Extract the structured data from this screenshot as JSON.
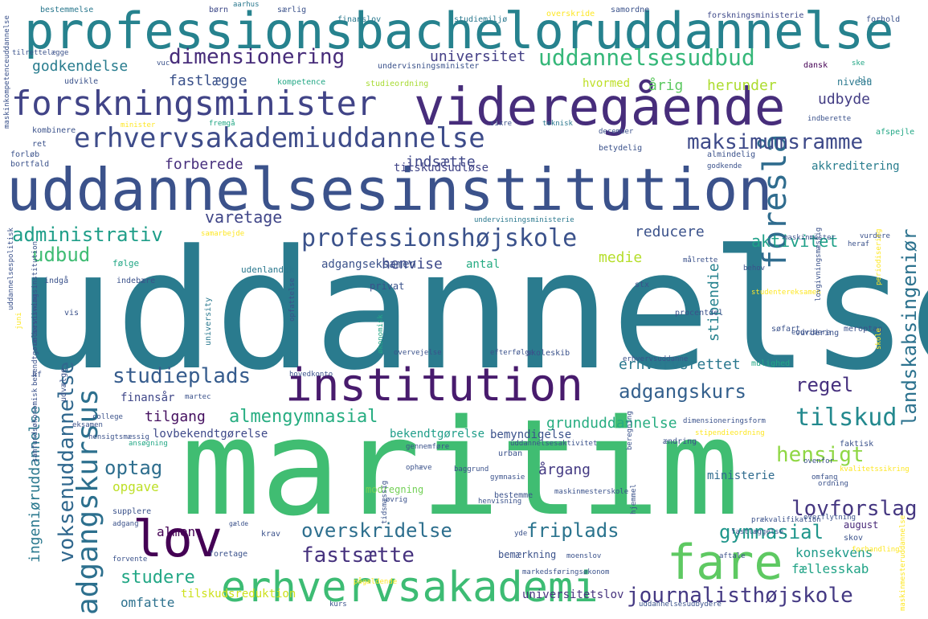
{
  "words": [
    {
      "text": "uddannelse",
      "color": "#2a7b8e"
    },
    {
      "text": "maritim",
      "color": "#40bd72"
    },
    {
      "text": "uddannelsesinstitution",
      "color": "#3b528b"
    },
    {
      "text": "professionsbacheloruddannelse",
      "color": "#26828e"
    },
    {
      "text": "videregående",
      "color": "#472d7b"
    },
    {
      "text": "institution",
      "color": "#481b6d"
    },
    {
      "text": "lov",
      "color": "#440154"
    },
    {
      "text": "fare",
      "color": "#5ec962"
    },
    {
      "text": "erhvervsakademi",
      "color": "#3dbc74"
    },
    {
      "text": "forskningsminister",
      "color": "#414487"
    },
    {
      "text": "erhvervsakademiuddannelse",
      "color": "#3e4c8a"
    },
    {
      "text": "adgangskursus",
      "color": "#2d708e"
    },
    {
      "text": "professionshøjskole",
      "color": "#3b528b"
    },
    {
      "text": "foreslå",
      "color": "#2f6c8e"
    },
    {
      "text": "uddannelsesudbud",
      "color": "#35b779"
    },
    {
      "text": "dimensionering",
      "color": "#472c7a"
    },
    {
      "text": "maksimumsramme",
      "color": "#3e4a89"
    },
    {
      "text": "studieplads",
      "color": "#365c8d"
    },
    {
      "text": "adgangskurs",
      "color": "#34608d"
    },
    {
      "text": "voksenuddannelse",
      "color": "#31688e"
    },
    {
      "text": "landskabsingeniør",
      "color": "#2c728e"
    },
    {
      "text": "tilskud",
      "color": "#23898e"
    },
    {
      "text": "journalisthøjskole",
      "color": "#443983"
    },
    {
      "text": "fastsætte",
      "color": "#46327e"
    },
    {
      "text": "overskridelse",
      "color": "#2e6f8e"
    },
    {
      "text": "lovforslag",
      "color": "#453781"
    },
    {
      "text": "gymnasial",
      "color": "#1f968b"
    },
    {
      "text": "hensigt",
      "color": "#8fd744"
    },
    {
      "text": "friplads",
      "color": "#2b748e"
    },
    {
      "text": "administrativ",
      "color": "#1f9e89"
    },
    {
      "text": "almengymnasial",
      "color": "#26ad81"
    },
    {
      "text": "regel",
      "color": "#46307e"
    },
    {
      "text": "udbud",
      "color": "#3fbc73"
    },
    {
      "text": "optag",
      "color": "#2e6e8e"
    },
    {
      "text": "studere",
      "color": "#22a785"
    },
    {
      "text": "forberede",
      "color": "#472f7d"
    },
    {
      "text": "godkendelse",
      "color": "#287c8e"
    },
    {
      "text": "aktivitet",
      "color": "#1fa088"
    },
    {
      "text": "erhvervsrettet",
      "color": "#2a788e"
    },
    {
      "text": "konsekvens",
      "color": "#1e9b8a"
    },
    {
      "text": "fællesskab",
      "color": "#20a386"
    },
    {
      "text": "grunduddannelse",
      "color": "#27ad81"
    },
    {
      "text": "tilgang",
      "color": "#440f5f"
    },
    {
      "text": "årgang",
      "color": "#443a83"
    },
    {
      "text": "ingeniøruddannelse",
      "color": "#2a788e"
    },
    {
      "text": "universitet",
      "color": "#433e85"
    },
    {
      "text": "fastlægge",
      "color": "#3b528b"
    },
    {
      "text": "herunder",
      "color": "#addc30"
    },
    {
      "text": "udbyde",
      "color": "#433d84"
    },
    {
      "text": "årig",
      "color": "#5ec962"
    },
    {
      "text": "varetage",
      "color": "#404688"
    },
    {
      "text": "reducere",
      "color": "#3b528b"
    },
    {
      "text": "stipendie",
      "color": "#26828e"
    },
    {
      "text": "medie",
      "color": "#b5de2b"
    },
    {
      "text": "henvise",
      "color": "#3e4989"
    },
    {
      "text": "indsætte",
      "color": "#3f4788"
    },
    {
      "text": "almen",
      "color": "#440154"
    },
    {
      "text": "opgave",
      "color": "#bddf26"
    },
    {
      "text": "omfatte",
      "color": "#2d718e"
    },
    {
      "text": "ministerie",
      "color": "#2f6b8e"
    },
    {
      "text": "universitetslov",
      "color": "#46327e"
    },
    {
      "text": "tilskudsreduktion",
      "color": "#cde11d"
    },
    {
      "text": "bekendtgørelse",
      "color": "#1f9e89"
    },
    {
      "text": "lovbekendtgørelse",
      "color": "#3e4989"
    },
    {
      "text": "finansår",
      "color": "#3f4788"
    },
    {
      "text": "akkreditering",
      "color": "#287d8e"
    },
    {
      "text": "tilskudsudløse",
      "color": "#414487"
    },
    {
      "text": "adgangseksamen",
      "color": "#3b528b"
    },
    {
      "text": "hvormed",
      "color": "#bddf26"
    },
    {
      "text": "niveau",
      "color": "#2a788e"
    },
    {
      "text": "bemyndigelse",
      "color": "#3b528b"
    },
    {
      "text": "antal",
      "color": "#25ab82"
    },
    {
      "text": "august",
      "color": "#482878"
    },
    {
      "text": "modregning",
      "color": "#73d056"
    },
    {
      "text": "bemærkning",
      "color": "#3b528b"
    },
    {
      "text": "privat",
      "color": "#3b528b"
    },
    {
      "text": "kompetence",
      "color": "#22a785"
    },
    {
      "text": "studieordning",
      "color": "#a8db34"
    },
    {
      "text": "undervisningsminister",
      "color": "#3b528b"
    },
    {
      "text": "udvikle",
      "color": "#3b528b"
    },
    {
      "text": "kombinere",
      "color": "#3b528b"
    },
    {
      "text": "bestemmelse",
      "color": "#2a788e"
    },
    {
      "text": "børn",
      "color": "#3e4989"
    },
    {
      "text": "aarhus",
      "color": "#2a788e"
    },
    {
      "text": "særlig",
      "color": "#3b528b"
    },
    {
      "text": "finanslov",
      "color": "#2a788e"
    },
    {
      "text": "studiemiljø",
      "color": "#2a788e"
    },
    {
      "text": "overskride",
      "color": "#fde725"
    },
    {
      "text": "samordne",
      "color": "#3b528b"
    },
    {
      "text": "forskningsministerie",
      "color": "#3e4989"
    },
    {
      "text": "forhold",
      "color": "#3b528b"
    },
    {
      "text": "dansk",
      "color": "#440154"
    },
    {
      "text": "ble",
      "color": "#2a788e"
    },
    {
      "text": "indberette",
      "color": "#3b528b"
    },
    {
      "text": "afspejle",
      "color": "#22a785"
    },
    {
      "text": "december",
      "color": "#3b528b"
    },
    {
      "text": "betydelig",
      "color": "#3b528b"
    },
    {
      "text": "almindelig",
      "color": "#3b528b"
    },
    {
      "text": "godkende",
      "color": "#3b528b"
    },
    {
      "text": "forløb",
      "color": "#3b528b"
    },
    {
      "text": "bortfald",
      "color": "#3b528b"
    },
    {
      "text": "ret",
      "color": "#3b528b"
    },
    {
      "text": "minister",
      "color": "#fde725"
    },
    {
      "text": "teknisk",
      "color": "#2a788e"
    },
    {
      "text": "samarbejde",
      "color": "#fde725"
    },
    {
      "text": "undervisningsministerie",
      "color": "#2a788e"
    },
    {
      "text": "maskinmester",
      "color": "#3b528b"
    },
    {
      "text": "følge",
      "color": "#22a785"
    },
    {
      "text": "indebære",
      "color": "#3b528b"
    },
    {
      "text": "udenlandsk",
      "color": "#2a788e"
    },
    {
      "text": "indgå",
      "color": "#3b528b"
    },
    {
      "text": "vis",
      "color": "#3b528b"
    },
    {
      "text": "stx",
      "color": "#3b528b"
    },
    {
      "text": "procentdel",
      "color": "#3b528b"
    },
    {
      "text": "søfart",
      "color": "#3b528b"
    },
    {
      "text": "vurdering",
      "color": "#3b528b"
    },
    {
      "text": "meroptag",
      "color": "#3b528b"
    },
    {
      "text": "mulighed",
      "color": "#22a785"
    },
    {
      "text": "university",
      "color": "#2a788e"
    },
    {
      "text": "økonomisk",
      "color": "#22a785"
    },
    {
      "text": "skoleskib",
      "color": "#3b528b"
    },
    {
      "text": "efterfølge",
      "color": "#3b528b"
    },
    {
      "text": "overvejelse",
      "color": "#3b528b"
    },
    {
      "text": "hovedkonto",
      "color": "#3b528b"
    },
    {
      "text": "martec",
      "color": "#3b528b"
    },
    {
      "text": "college",
      "color": "#3b528b"
    },
    {
      "text": "eksamen",
      "color": "#3b528b"
    },
    {
      "text": "hensigtsmæssig",
      "color": "#3b528b"
    },
    {
      "text": "ansøgning",
      "color": "#22a785"
    },
    {
      "text": "urban",
      "color": "#3b528b"
    },
    {
      "text": "gennemføre",
      "color": "#3b528b"
    },
    {
      "text": "uddannelsesaktivitet",
      "color": "#3b528b"
    },
    {
      "text": "ændring",
      "color": "#3b528b"
    },
    {
      "text": "faktisk",
      "color": "#3b528b"
    },
    {
      "text": "baggrund",
      "color": "#3b528b"
    },
    {
      "text": "ophæve",
      "color": "#3b528b"
    },
    {
      "text": "gymnasie",
      "color": "#3b528b"
    },
    {
      "text": "øvrig",
      "color": "#3b528b"
    },
    {
      "text": "bestemme",
      "color": "#3b528b"
    },
    {
      "text": "maskinmesterskole",
      "color": "#3b528b"
    },
    {
      "text": "ordning",
      "color": "#3b528b"
    },
    {
      "text": "supplere",
      "color": "#3b528b"
    },
    {
      "text": "adgang",
      "color": "#3b528b"
    },
    {
      "text": "gælde",
      "color": "#3b528b"
    },
    {
      "text": "krav",
      "color": "#3b528b"
    },
    {
      "text": "forvente",
      "color": "#3b528b"
    },
    {
      "text": "foretage",
      "color": "#3b528b"
    },
    {
      "text": "fastlæggelse",
      "color": "#3b528b"
    },
    {
      "text": "skov",
      "color": "#3b528b"
    },
    {
      "text": "prækvalifikation",
      "color": "#3b528b"
    },
    {
      "text": "overflytning",
      "color": "#3b528b"
    },
    {
      "text": "aftale",
      "color": "#3b528b"
    },
    {
      "text": "moenslov",
      "color": "#3b528b"
    },
    {
      "text": "markedsføringsøkonom",
      "color": "#3b528b"
    },
    {
      "text": "kurs",
      "color": "#3b528b"
    },
    {
      "text": "ovenfor",
      "color": "#3b528b"
    },
    {
      "text": "hf",
      "color": "#3b528b"
    },
    {
      "text": "udvælge",
      "color": "#3b528b"
    },
    {
      "text": "uddannelsespolitisk",
      "color": "#3b528b"
    },
    {
      "text": "undervisningsinstitution",
      "color": "#3b528b"
    },
    {
      "text": "bekendtgørelsesniveau",
      "color": "#3b528b"
    },
    {
      "text": "samfundsøkonomisk",
      "color": "#3b528b"
    },
    {
      "text": "tilrettelægge",
      "color": "#3b528b"
    },
    {
      "text": "juni",
      "color": "#fde725"
    },
    {
      "text": "vuc",
      "color": "#3b528b"
    },
    {
      "text": "sikre",
      "color": "#3b528b"
    },
    {
      "text": "ske",
      "color": "#22a785"
    },
    {
      "text": "fremgå",
      "color": "#22a785"
    },
    {
      "text": "opfattelse",
      "color": "#3b528b"
    },
    {
      "text": "målrette",
      "color": "#3b528b"
    },
    {
      "text": "behov",
      "color": "#3b528b"
    },
    {
      "text": "studentereksamen",
      "color": "#fde725"
    },
    {
      "text": "endvidere",
      "color": "#3b528b"
    },
    {
      "text": "dimensioneringsform",
      "color": "#3b528b"
    },
    {
      "text": "omfang",
      "color": "#3b528b"
    },
    {
      "text": "kvalitetssikring",
      "color": "#fde725"
    },
    {
      "text": "lovgivningsmæssig",
      "color": "#3b528b"
    },
    {
      "text": "skole",
      "color": "#fde725"
    },
    {
      "text": "maskinmesteruddannelse",
      "color": "#fde725"
    },
    {
      "text": "yde",
      "color": "#3b528b"
    },
    {
      "text": "tidsmæssig",
      "color": "#3b528b"
    },
    {
      "text": "hjemmel",
      "color": "#3b528b"
    },
    {
      "text": "heraf",
      "color": "#3b528b"
    },
    {
      "text": "vurdere",
      "color": "#3b528b"
    },
    {
      "text": "periodisering",
      "color": "#fde725"
    },
    {
      "text": "erhvervsuddanne",
      "color": "#3b528b"
    },
    {
      "text": "stipendieordning",
      "color": "#fde725"
    },
    {
      "text": "uddannelsesudbydere",
      "color": "#3b528b"
    },
    {
      "text": "forhandling",
      "color": "#fde725"
    },
    {
      "text": "pågældende",
      "color": "#fde725"
    },
    {
      "text": "henvisning",
      "color": "#3b528b"
    },
    {
      "text": "beregning",
      "color": "#3b528b"
    },
    {
      "text": "maskinkompetenceuddannelse",
      "color": "#3b528b"
    }
  ]
}
